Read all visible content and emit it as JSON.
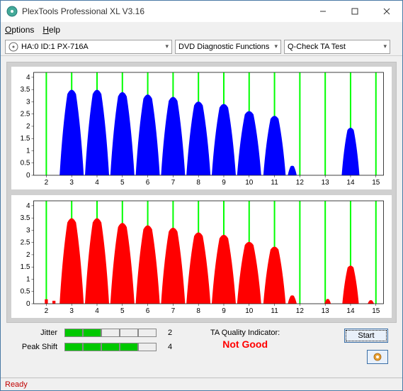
{
  "window": {
    "title": "PlexTools Professional XL V3.16"
  },
  "menu": {
    "options": "Options",
    "options_ul": "O",
    "options_rest": "ptions",
    "help": "Help",
    "help_ul": "H",
    "help_rest": "elp"
  },
  "toolbar": {
    "device": "HA:0 ID:1  PX-716A",
    "mode": "DVD Diagnostic Functions",
    "test": "Q-Check TA Test"
  },
  "chart": {
    "x_ticks": [
      2,
      3,
      4,
      5,
      6,
      7,
      8,
      9,
      10,
      11,
      12,
      13,
      14,
      15
    ],
    "y_ticks": [
      0,
      0.5,
      1,
      1.5,
      2,
      2.5,
      3,
      3.5,
      4
    ],
    "xlim": [
      1.5,
      15.3
    ],
    "ylim": [
      0,
      4.2
    ],
    "tick_fontsize": 10,
    "grid_x_color": "#00ff00",
    "grid_x_width": 2,
    "background": "#ffffff",
    "series_top": {
      "color": "#0000ff",
      "peaks": [
        {
          "x": 3,
          "h": 3.6,
          "w": 0.95
        },
        {
          "x": 4,
          "h": 3.6,
          "w": 0.95
        },
        {
          "x": 5,
          "h": 3.5,
          "w": 0.95
        },
        {
          "x": 6,
          "h": 3.4,
          "w": 0.95
        },
        {
          "x": 7,
          "h": 3.3,
          "w": 0.95
        },
        {
          "x": 8,
          "h": 3.1,
          "w": 0.95
        },
        {
          "x": 9,
          "h": 3.0,
          "w": 0.95
        },
        {
          "x": 10,
          "h": 2.7,
          "w": 0.95
        },
        {
          "x": 11,
          "h": 2.5,
          "w": 0.88
        },
        {
          "x": 11.7,
          "h": 0.4,
          "w": 0.35
        },
        {
          "x": 14,
          "h": 2.0,
          "w": 0.7
        }
      ]
    },
    "series_bottom": {
      "color": "#ff0000",
      "peaks": [
        {
          "x": 3,
          "h": 3.6,
          "w": 0.95
        },
        {
          "x": 4,
          "h": 3.6,
          "w": 0.95
        },
        {
          "x": 5,
          "h": 3.4,
          "w": 0.95
        },
        {
          "x": 6,
          "h": 3.3,
          "w": 0.95
        },
        {
          "x": 7,
          "h": 3.2,
          "w": 0.95
        },
        {
          "x": 8,
          "h": 3.0,
          "w": 0.95
        },
        {
          "x": 9,
          "h": 2.9,
          "w": 0.95
        },
        {
          "x": 10,
          "h": 2.6,
          "w": 0.95
        },
        {
          "x": 11,
          "h": 2.4,
          "w": 0.88
        },
        {
          "x": 11.7,
          "h": 0.35,
          "w": 0.35
        },
        {
          "x": 13.1,
          "h": 0.2,
          "w": 0.25
        },
        {
          "x": 14,
          "h": 1.6,
          "w": 0.65
        },
        {
          "x": 14.8,
          "h": 0.15,
          "w": 0.25
        }
      ],
      "baseline_noise": [
        {
          "x": 2.0,
          "h": 0.18
        },
        {
          "x": 2.3,
          "h": 0.12
        }
      ]
    }
  },
  "metrics": {
    "jitter": {
      "label": "Jitter",
      "value": 2,
      "total": 5
    },
    "peak_shift": {
      "label": "Peak Shift",
      "value": 4,
      "total": 5
    }
  },
  "quality": {
    "label": "TA Quality Indicator:",
    "value": "Not Good",
    "color": "#ff0000"
  },
  "buttons": {
    "start": "Start"
  },
  "status": {
    "text": "Ready",
    "color": "#c00000"
  }
}
